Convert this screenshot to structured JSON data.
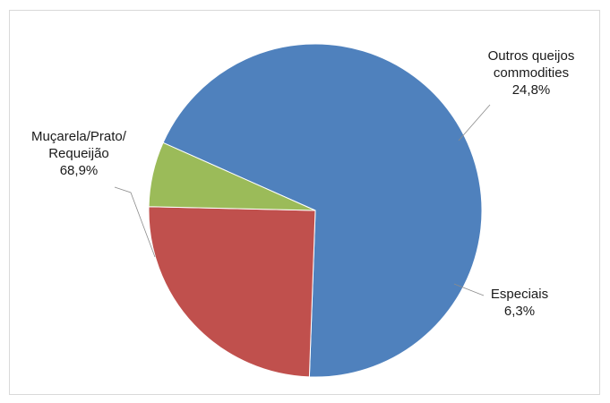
{
  "chart_data": {
    "type": "pie",
    "slices": [
      {
        "label_lines": [
          "Muçarela/Prato/",
          "Requeijão"
        ],
        "value_label": "68,9%",
        "value": 68.9,
        "color": "#4f81bd"
      },
      {
        "label_lines": [
          "Outros queijos",
          "commodities"
        ],
        "value_label": "24,8%",
        "value": 24.8,
        "color": "#c0504d"
      },
      {
        "label_lines": [
          "Especiais"
        ],
        "value_label": "6,3%",
        "value": 6.3,
        "color": "#9bbb59"
      }
    ],
    "legend": "none",
    "data_labels": "outside with leader lines"
  }
}
